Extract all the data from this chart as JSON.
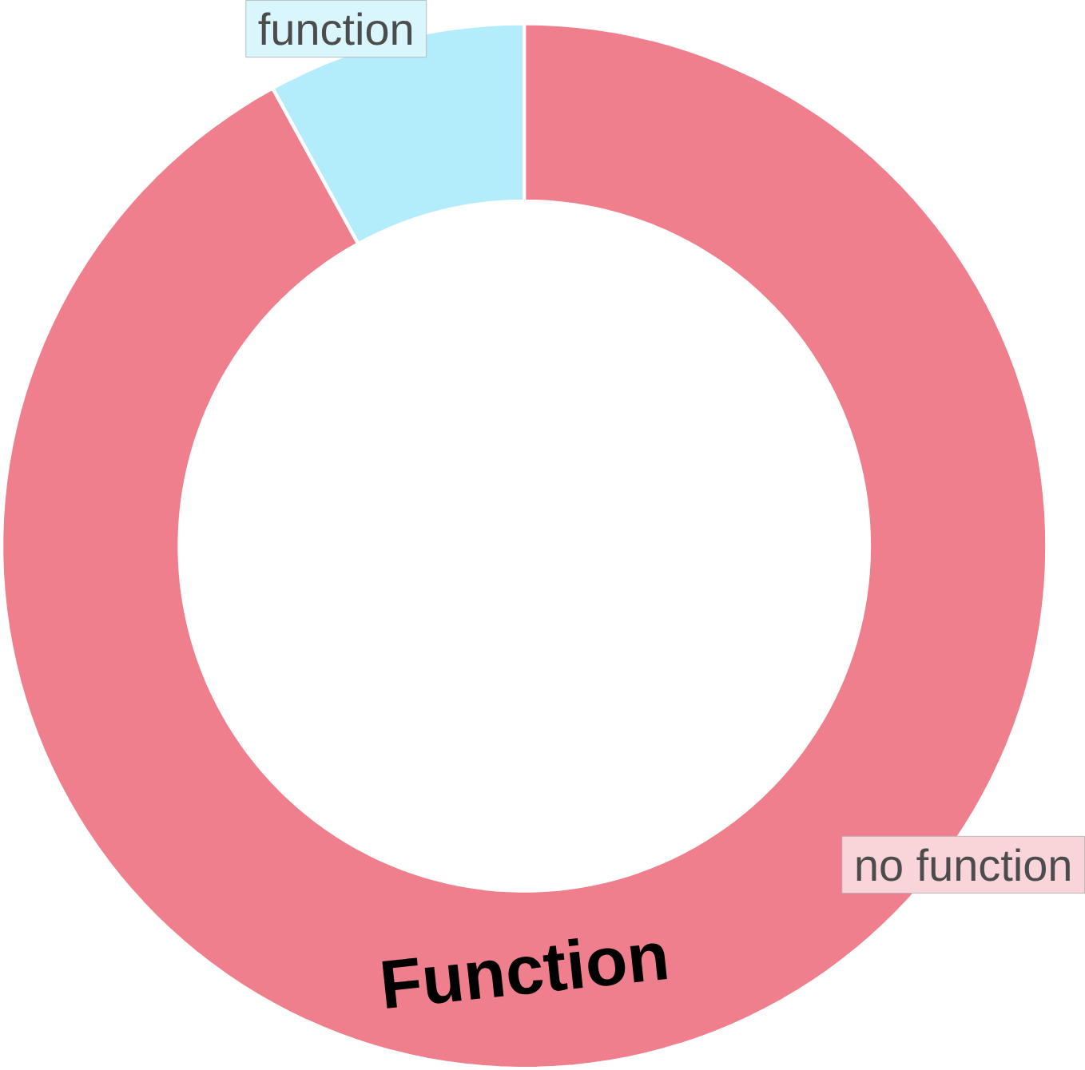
{
  "chart_data": {
    "type": "donut",
    "title": "Function",
    "categories": [
      "function",
      "no function"
    ],
    "values": [
      8,
      92
    ],
    "colors": [
      "#b3edfc",
      "#f07f8e"
    ]
  }
}
